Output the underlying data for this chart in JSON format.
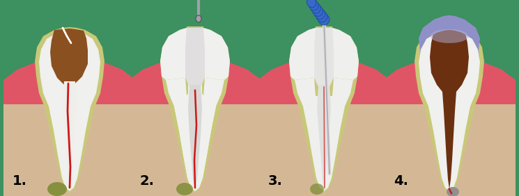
{
  "background_color": "#3d9060",
  "fig_width": 7.45,
  "fig_height": 2.82,
  "labels": [
    "1.",
    "2.",
    "3.",
    "4."
  ],
  "colors": {
    "bone": "#d4b896",
    "gum": "#e05565",
    "gum_dark": "#c03045",
    "pdl": "#c8c878",
    "enamel": "#f2f2f2",
    "enamel_shadow": "#d8d8d0",
    "dentin": "#e8d8a0",
    "pulp_decay": "#8B5020",
    "pulp_nerve": "#cc1818",
    "abscess_green": "#7a8a30",
    "canal_white": "#e8e8e8",
    "filling_brown": "#6B3010",
    "crown_blue": "#9090c8",
    "crown_light": "#b0b0d8",
    "tool_gray_light": "#d0d0d8",
    "tool_gray_mid": "#a0a0a8",
    "tool_gray_dark": "#505058",
    "file_blue": "#3868c8",
    "file_blue_dark": "#1848a0",
    "root_gray": "#909090"
  }
}
